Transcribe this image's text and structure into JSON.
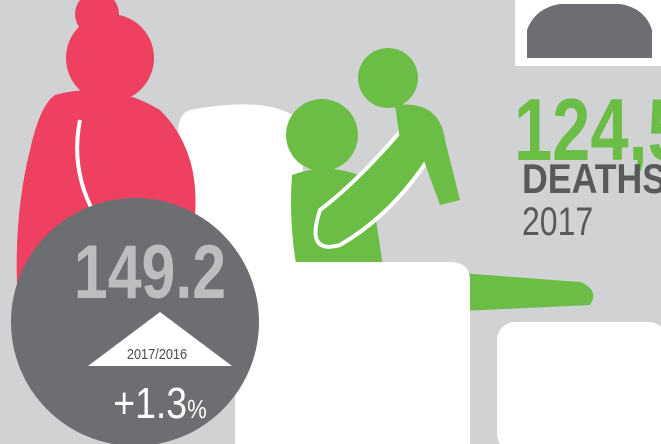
{
  "infographic": {
    "stat": {
      "value": "149.2",
      "period": "2017/2016",
      "change": "+1.3",
      "change_unit": "%"
    },
    "deaths": {
      "count": "124,5",
      "label": "DEATHS",
      "year": "2017"
    }
  }
}
